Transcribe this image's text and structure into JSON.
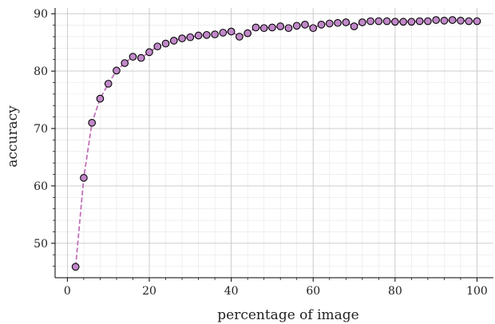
{
  "chart_data": {
    "type": "scatter",
    "title": "",
    "xlabel": "percentage of image",
    "ylabel": "accuracy",
    "xlim": [
      -3,
      104
    ],
    "ylim": [
      44,
      91
    ],
    "xticks": [
      0,
      20,
      40,
      60,
      80,
      100
    ],
    "yticks": [
      50,
      60,
      70,
      80,
      90
    ],
    "x_tick_labels": [
      "0",
      "20",
      "40",
      "60",
      "80",
      "100"
    ],
    "y_tick_labels": [
      "50",
      "60",
      "70",
      "80",
      "90"
    ],
    "grid": true,
    "legend": "none",
    "series": [
      {
        "x": [
          2,
          4,
          6,
          8,
          10,
          12,
          14,
          16,
          18,
          20,
          22,
          24,
          26,
          28,
          30,
          32,
          34,
          36,
          38,
          40,
          42,
          44,
          46,
          48,
          50,
          52,
          54,
          56,
          58,
          60,
          62,
          64,
          66,
          68,
          70,
          72,
          74,
          76,
          78,
          80,
          82,
          84,
          86,
          88,
          90,
          92,
          94,
          96,
          98,
          100
        ],
        "y": [
          45.9,
          61.4,
          71.0,
          75.2,
          77.8,
          80.1,
          81.4,
          82.5,
          82.3,
          83.3,
          84.3,
          84.8,
          85.3,
          85.7,
          85.9,
          86.2,
          86.3,
          86.4,
          86.7,
          86.9,
          86.0,
          86.6,
          87.6,
          87.5,
          87.6,
          87.8,
          87.5,
          87.9,
          88.1,
          87.5,
          88.1,
          88.3,
          88.4,
          88.5,
          87.8,
          88.5,
          88.7,
          88.7,
          88.7,
          88.6,
          88.6,
          88.6,
          88.7,
          88.7,
          88.9,
          88.8,
          88.9,
          88.8,
          88.7,
          88.7
        ],
        "marker_color": "#c088c8",
        "line_color": "#c070b8",
        "line_style": "dashed"
      }
    ]
  }
}
